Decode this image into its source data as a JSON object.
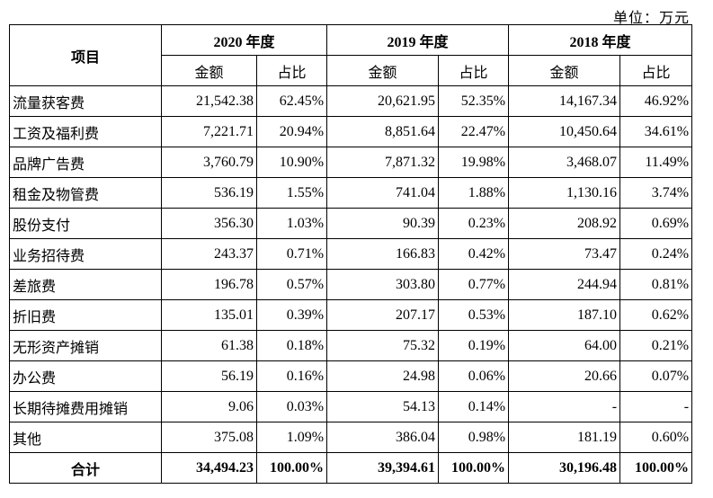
{
  "unit_label": "单位：万元",
  "header": {
    "item": "项目",
    "years": [
      "2020 年度",
      "2019 年度",
      "2018 年度"
    ],
    "amount": "金额",
    "ratio": "占比"
  },
  "rows": [
    {
      "label": "流量获客费",
      "values": [
        "21,542.38",
        "62.45%",
        "20,621.95",
        "52.35%",
        "14,167.34",
        "46.92%"
      ]
    },
    {
      "label": "工资及福利费",
      "values": [
        "7,221.71",
        "20.94%",
        "8,851.64",
        "22.47%",
        "10,450.64",
        "34.61%"
      ]
    },
    {
      "label": "品牌广告费",
      "values": [
        "3,760.79",
        "10.90%",
        "7,871.32",
        "19.98%",
        "3,468.07",
        "11.49%"
      ]
    },
    {
      "label": "租金及物管费",
      "values": [
        "536.19",
        "1.55%",
        "741.04",
        "1.88%",
        "1,130.16",
        "3.74%"
      ]
    },
    {
      "label": "股份支付",
      "values": [
        "356.30",
        "1.03%",
        "90.39",
        "0.23%",
        "208.92",
        "0.69%"
      ]
    },
    {
      "label": "业务招待费",
      "values": [
        "243.37",
        "0.71%",
        "166.83",
        "0.42%",
        "73.47",
        "0.24%"
      ]
    },
    {
      "label": "差旅费",
      "values": [
        "196.78",
        "0.57%",
        "303.80",
        "0.77%",
        "244.94",
        "0.81%"
      ]
    },
    {
      "label": "折旧费",
      "values": [
        "135.01",
        "0.39%",
        "207.17",
        "0.53%",
        "187.10",
        "0.62%"
      ]
    },
    {
      "label": "无形资产摊销",
      "values": [
        "61.38",
        "0.18%",
        "75.32",
        "0.19%",
        "64.00",
        "0.21%"
      ]
    },
    {
      "label": "办公费",
      "values": [
        "56.19",
        "0.16%",
        "24.98",
        "0.06%",
        "20.66",
        "0.07%"
      ]
    },
    {
      "label": "长期待摊费用摊销",
      "values": [
        "9.06",
        "0.03%",
        "54.13",
        "0.14%",
        "-",
        "-"
      ]
    },
    {
      "label": "其他",
      "values": [
        "375.08",
        "1.09%",
        "386.04",
        "0.98%",
        "181.19",
        "0.60%"
      ]
    }
  ],
  "total": {
    "label": "合计",
    "values": [
      "34,494.23",
      "100.00%",
      "39,394.61",
      "100.00%",
      "30,196.48",
      "100.00%"
    ]
  }
}
